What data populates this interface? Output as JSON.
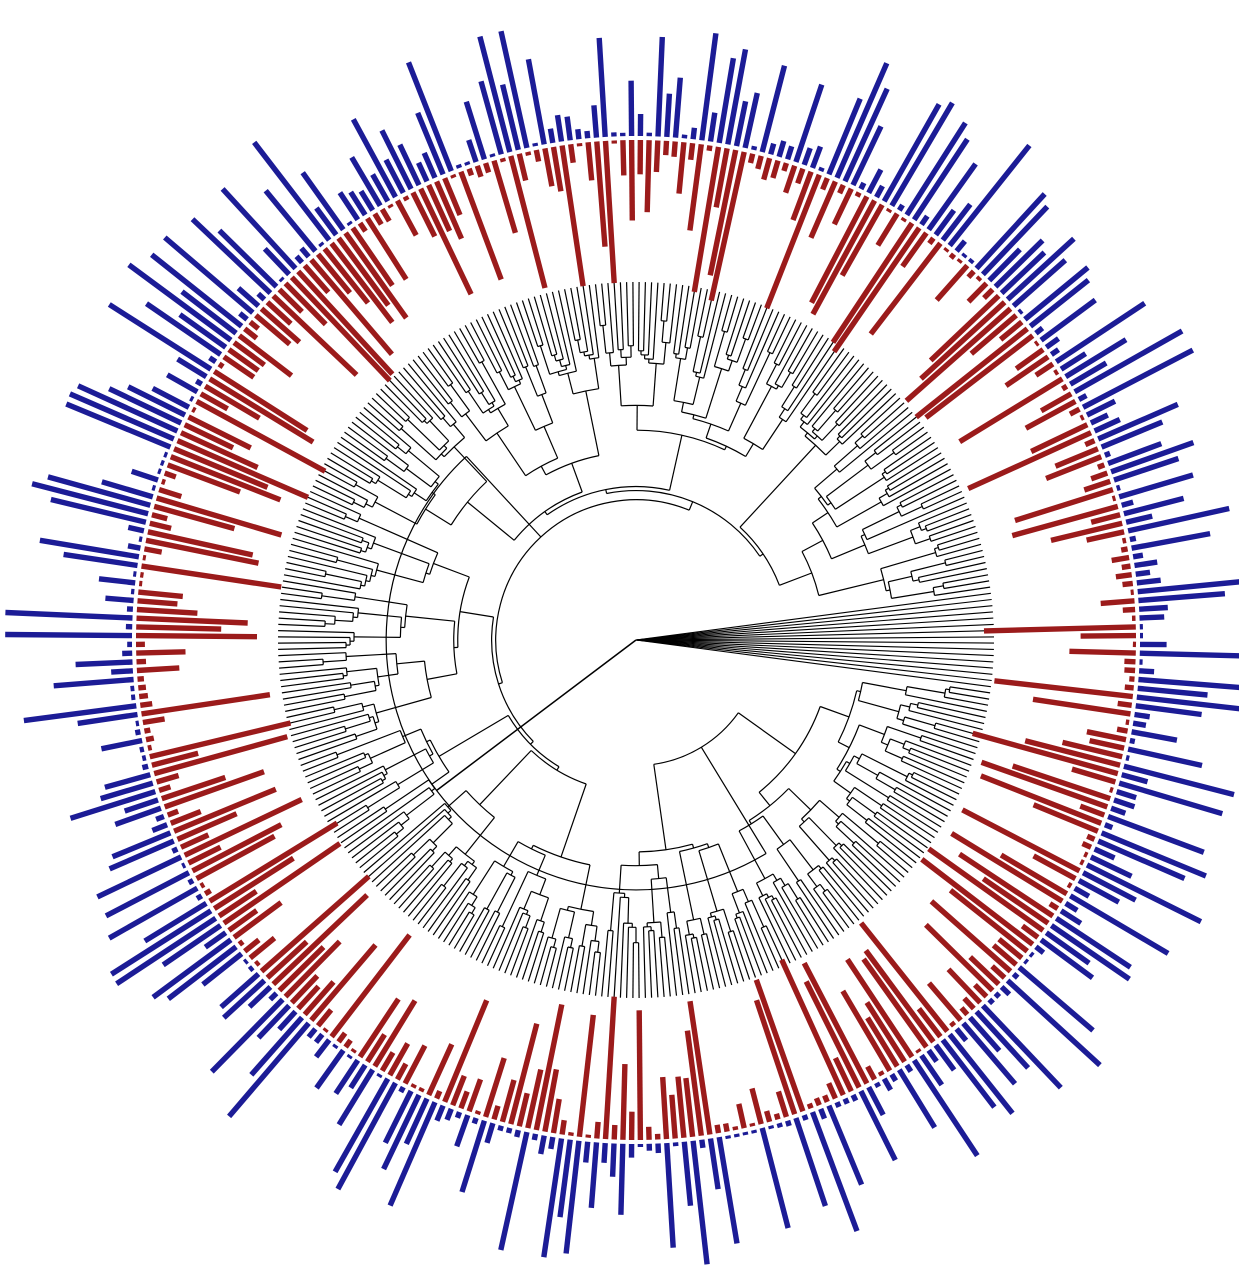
{
  "figure": {
    "type": "circular phylogenetic tree with radial bar tracks",
    "colors": {
      "tree": "#000000",
      "inner_bars": "#9b1b1b",
      "outer_bars": "#1c1c96",
      "background": "#ffffff"
    },
    "tips": 360,
    "tracks": [
      {
        "name": "",
        "color": "#9b1b1b",
        "direction": "inward"
      },
      {
        "name": "",
        "color": "#1c1c96",
        "direction": "outward"
      }
    ]
  }
}
